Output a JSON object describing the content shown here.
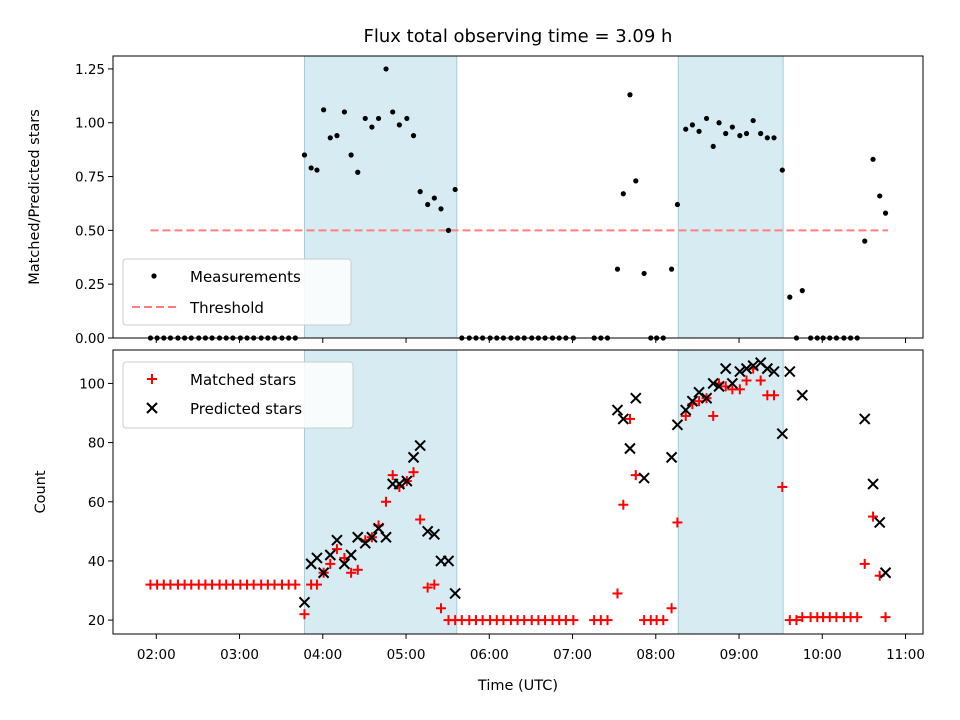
{
  "chart_data": [
    {
      "type": "scatter",
      "title": "Flux total observing time = 3.09 h",
      "xlabel": "",
      "ylabel": "Matched/Predicted stars",
      "ylim": [
        0,
        1.31
      ],
      "yticks": [
        0.0,
        0.25,
        0.5,
        0.75,
        1.0,
        1.25
      ],
      "ytick_labels": [
        "0.00",
        "0.25",
        "0.50",
        "0.75",
        "1.00",
        "1.25"
      ],
      "xlim": [
        1.48,
        11.21
      ],
      "shaded_spans": [
        [
          3.78,
          5.61
        ],
        [
          8.27,
          9.53
        ]
      ],
      "shade_color": "#add8e6",
      "legend": {
        "position": "lower-left",
        "entries": [
          "Measurements",
          "Threshold"
        ]
      },
      "series": [
        {
          "name": "Measurements",
          "marker": "dot",
          "color": "#000000",
          "points": [
            [
              1.93,
              0
            ],
            [
              2.01,
              0
            ],
            [
              2.09,
              0
            ],
            [
              2.17,
              0
            ],
            [
              2.26,
              0
            ],
            [
              2.34,
              0
            ],
            [
              2.42,
              0
            ],
            [
              2.51,
              0
            ],
            [
              2.59,
              0
            ],
            [
              2.67,
              0
            ],
            [
              2.76,
              0
            ],
            [
              2.84,
              0
            ],
            [
              2.92,
              0
            ],
            [
              3.01,
              0
            ],
            [
              3.09,
              0
            ],
            [
              3.17,
              0
            ],
            [
              3.26,
              0
            ],
            [
              3.34,
              0
            ],
            [
              3.42,
              0
            ],
            [
              3.51,
              0
            ],
            [
              3.59,
              0
            ],
            [
              3.67,
              0
            ],
            [
              3.78,
              0.85
            ],
            [
              3.86,
              0.79
            ],
            [
              3.93,
              0.78
            ],
            [
              4.01,
              1.06
            ],
            [
              4.09,
              0.93
            ],
            [
              4.17,
              0.94
            ],
            [
              4.26,
              1.05
            ],
            [
              4.34,
              0.85
            ],
            [
              4.42,
              0.77
            ],
            [
              4.51,
              1.02
            ],
            [
              4.59,
              0.98
            ],
            [
              4.67,
              1.02
            ],
            [
              4.76,
              1.25
            ],
            [
              4.84,
              1.05
            ],
            [
              4.92,
              0.99
            ],
            [
              5.01,
              1.02
            ],
            [
              5.09,
              0.94
            ],
            [
              5.17,
              0.68
            ],
            [
              5.26,
              0.62
            ],
            [
              5.34,
              0.65
            ],
            [
              5.42,
              0.6
            ],
            [
              5.51,
              0.5
            ],
            [
              5.59,
              0.69
            ],
            [
              5.67,
              0
            ],
            [
              5.76,
              0
            ],
            [
              5.84,
              0
            ],
            [
              5.92,
              0
            ],
            [
              6.01,
              0
            ],
            [
              6.09,
              0
            ],
            [
              6.17,
              0
            ],
            [
              6.26,
              0
            ],
            [
              6.34,
              0
            ],
            [
              6.42,
              0
            ],
            [
              6.51,
              0
            ],
            [
              6.59,
              0
            ],
            [
              6.67,
              0
            ],
            [
              6.76,
              0
            ],
            [
              6.84,
              0
            ],
            [
              6.92,
              0
            ],
            [
              7.01,
              0
            ],
            [
              7.26,
              0
            ],
            [
              7.34,
              0
            ],
            [
              7.42,
              0
            ],
            [
              7.54,
              0.32
            ],
            [
              7.61,
              0.67
            ],
            [
              7.69,
              1.13
            ],
            [
              7.76,
              0.73
            ],
            [
              7.86,
              0.3
            ],
            [
              7.94,
              0
            ],
            [
              8.01,
              0
            ],
            [
              8.09,
              0
            ],
            [
              8.19,
              0.32
            ],
            [
              8.26,
              0.62
            ],
            [
              8.36,
              0.97
            ],
            [
              8.44,
              0.99
            ],
            [
              8.52,
              0.96
            ],
            [
              8.61,
              1.02
            ],
            [
              8.69,
              0.89
            ],
            [
              8.76,
              1.0
            ],
            [
              8.84,
              0.95
            ],
            [
              8.92,
              0.98
            ],
            [
              9.01,
              0.94
            ],
            [
              9.09,
              0.95
            ],
            [
              9.17,
              1.01
            ],
            [
              9.26,
              0.95
            ],
            [
              9.34,
              0.93
            ],
            [
              9.42,
              0.93
            ],
            [
              9.52,
              0.78
            ],
            [
              9.61,
              0.19
            ],
            [
              9.69,
              0
            ],
            [
              9.76,
              0.22
            ],
            [
              9.86,
              0
            ],
            [
              9.94,
              0
            ],
            [
              10.01,
              0
            ],
            [
              10.09,
              0
            ],
            [
              10.17,
              0
            ],
            [
              10.26,
              0
            ],
            [
              10.34,
              0
            ],
            [
              10.42,
              0
            ],
            [
              10.51,
              0.45
            ],
            [
              10.61,
              0.83
            ],
            [
              10.69,
              0.66
            ],
            [
              10.76,
              0.58
            ]
          ]
        },
        {
          "name": "Threshold",
          "marker": "dashed-line",
          "color": "#ff7f7f",
          "points": [
            [
              1.93,
              0.5
            ],
            [
              10.79,
              0.5
            ]
          ]
        }
      ]
    },
    {
      "type": "scatter",
      "title": "",
      "xlabel": "Time (UTC)",
      "ylabel": "Count",
      "ylim": [
        15.3,
        111.3
      ],
      "yticks": [
        20,
        40,
        60,
        80,
        100
      ],
      "ytick_labels": [
        "20",
        "40",
        "60",
        "80",
        "100"
      ],
      "xlim": [
        1.48,
        11.21
      ],
      "xticks": [
        2,
        3,
        4,
        5,
        6,
        7,
        8,
        9,
        10,
        11
      ],
      "xtick_labels": [
        "02:00",
        "03:00",
        "04:00",
        "05:00",
        "06:00",
        "07:00",
        "08:00",
        "09:00",
        "10:00",
        "11:00"
      ],
      "shaded_spans": [
        [
          3.78,
          5.61
        ],
        [
          8.27,
          9.53
        ]
      ],
      "shade_color": "#add8e6",
      "legend": {
        "position": "upper-left",
        "entries": [
          "Matched stars",
          "Predicted stars"
        ]
      },
      "series": [
        {
          "name": "Matched stars",
          "marker": "plus",
          "color": "#ff0000",
          "points": [
            [
              1.93,
              32
            ],
            [
              2.01,
              32
            ],
            [
              2.09,
              32
            ],
            [
              2.17,
              32
            ],
            [
              2.26,
              32
            ],
            [
              2.34,
              32
            ],
            [
              2.42,
              32
            ],
            [
              2.51,
              32
            ],
            [
              2.59,
              32
            ],
            [
              2.67,
              32
            ],
            [
              2.76,
              32
            ],
            [
              2.84,
              32
            ],
            [
              2.92,
              32
            ],
            [
              3.01,
              32
            ],
            [
              3.09,
              32
            ],
            [
              3.17,
              32
            ],
            [
              3.26,
              32
            ],
            [
              3.34,
              32
            ],
            [
              3.42,
              32
            ],
            [
              3.51,
              32
            ],
            [
              3.59,
              32
            ],
            [
              3.67,
              32
            ],
            [
              3.78,
              22
            ],
            [
              3.86,
              32
            ],
            [
              3.93,
              32
            ],
            [
              4.01,
              36
            ],
            [
              4.09,
              39
            ],
            [
              4.17,
              44
            ],
            [
              4.26,
              41
            ],
            [
              4.34,
              36
            ],
            [
              4.42,
              37
            ],
            [
              4.51,
              47
            ],
            [
              4.59,
              48
            ],
            [
              4.67,
              52
            ],
            [
              4.76,
              60
            ],
            [
              4.84,
              69
            ],
            [
              4.92,
              65
            ],
            [
              5.01,
              67
            ],
            [
              5.09,
              70
            ],
            [
              5.17,
              54
            ],
            [
              5.26,
              31
            ],
            [
              5.34,
              32
            ],
            [
              5.42,
              24
            ],
            [
              5.51,
              20
            ],
            [
              5.59,
              20
            ],
            [
              5.67,
              20
            ],
            [
              5.76,
              20
            ],
            [
              5.84,
              20
            ],
            [
              5.92,
              20
            ],
            [
              6.01,
              20
            ],
            [
              6.09,
              20
            ],
            [
              6.17,
              20
            ],
            [
              6.26,
              20
            ],
            [
              6.34,
              20
            ],
            [
              6.42,
              20
            ],
            [
              6.51,
              20
            ],
            [
              6.59,
              20
            ],
            [
              6.67,
              20
            ],
            [
              6.76,
              20
            ],
            [
              6.84,
              20
            ],
            [
              6.92,
              20
            ],
            [
              7.01,
              20
            ],
            [
              7.26,
              20
            ],
            [
              7.34,
              20
            ],
            [
              7.42,
              20
            ],
            [
              7.54,
              29
            ],
            [
              7.61,
              59
            ],
            [
              7.69,
              88
            ],
            [
              7.76,
              69
            ],
            [
              7.86,
              20
            ],
            [
              7.94,
              20
            ],
            [
              8.01,
              20
            ],
            [
              8.09,
              20
            ],
            [
              8.19,
              24
            ],
            [
              8.26,
              53
            ],
            [
              8.36,
              89
            ],
            [
              8.44,
              93
            ],
            [
              8.52,
              94
            ],
            [
              8.61,
              95
            ],
            [
              8.69,
              89
            ],
            [
              8.76,
              100
            ],
            [
              8.84,
              99
            ],
            [
              8.92,
              98
            ],
            [
              9.01,
              98
            ],
            [
              9.09,
              101
            ],
            [
              9.17,
              105
            ],
            [
              9.26,
              101
            ],
            [
              9.34,
              96
            ],
            [
              9.42,
              96
            ],
            [
              9.52,
              65
            ],
            [
              9.61,
              20
            ],
            [
              9.69,
              20
            ],
            [
              9.76,
              21
            ],
            [
              9.86,
              21
            ],
            [
              9.94,
              21
            ],
            [
              10.01,
              21
            ],
            [
              10.09,
              21
            ],
            [
              10.17,
              21
            ],
            [
              10.26,
              21
            ],
            [
              10.34,
              21
            ],
            [
              10.42,
              21
            ],
            [
              10.51,
              39
            ],
            [
              10.61,
              55
            ],
            [
              10.69,
              35
            ],
            [
              10.76,
              21
            ]
          ]
        },
        {
          "name": "Predicted stars",
          "marker": "x",
          "color": "#000000",
          "points": [
            [
              3.78,
              26
            ],
            [
              3.86,
              39
            ],
            [
              3.93,
              41
            ],
            [
              4.01,
              36
            ],
            [
              4.09,
              42
            ],
            [
              4.17,
              47
            ],
            [
              4.26,
              39
            ],
            [
              4.34,
              42
            ],
            [
              4.42,
              48
            ],
            [
              4.51,
              46
            ],
            [
              4.59,
              48
            ],
            [
              4.67,
              51
            ],
            [
              4.76,
              48
            ],
            [
              4.84,
              66
            ],
            [
              4.92,
              66
            ],
            [
              5.01,
              67
            ],
            [
              5.09,
              75
            ],
            [
              5.17,
              79
            ],
            [
              5.26,
              50
            ],
            [
              5.34,
              49
            ],
            [
              5.42,
              40
            ],
            [
              5.51,
              40
            ],
            [
              5.59,
              29
            ],
            [
              7.54,
              91
            ],
            [
              7.61,
              88
            ],
            [
              7.69,
              78
            ],
            [
              7.76,
              95
            ],
            [
              7.86,
              68
            ],
            [
              8.19,
              75
            ],
            [
              8.26,
              86
            ],
            [
              8.36,
              91
            ],
            [
              8.44,
              94
            ],
            [
              8.52,
              97
            ],
            [
              8.61,
              95
            ],
            [
              8.69,
              100
            ],
            [
              8.76,
              99
            ],
            [
              8.84,
              105
            ],
            [
              8.92,
              100
            ],
            [
              9.01,
              104
            ],
            [
              9.09,
              105
            ],
            [
              9.17,
              106
            ],
            [
              9.26,
              107
            ],
            [
              9.34,
              105
            ],
            [
              9.42,
              104
            ],
            [
              9.52,
              83
            ],
            [
              9.61,
              104
            ],
            [
              9.76,
              96
            ],
            [
              10.51,
              88
            ],
            [
              10.61,
              66
            ],
            [
              10.69,
              53
            ],
            [
              10.76,
              36
            ]
          ]
        }
      ]
    }
  ]
}
